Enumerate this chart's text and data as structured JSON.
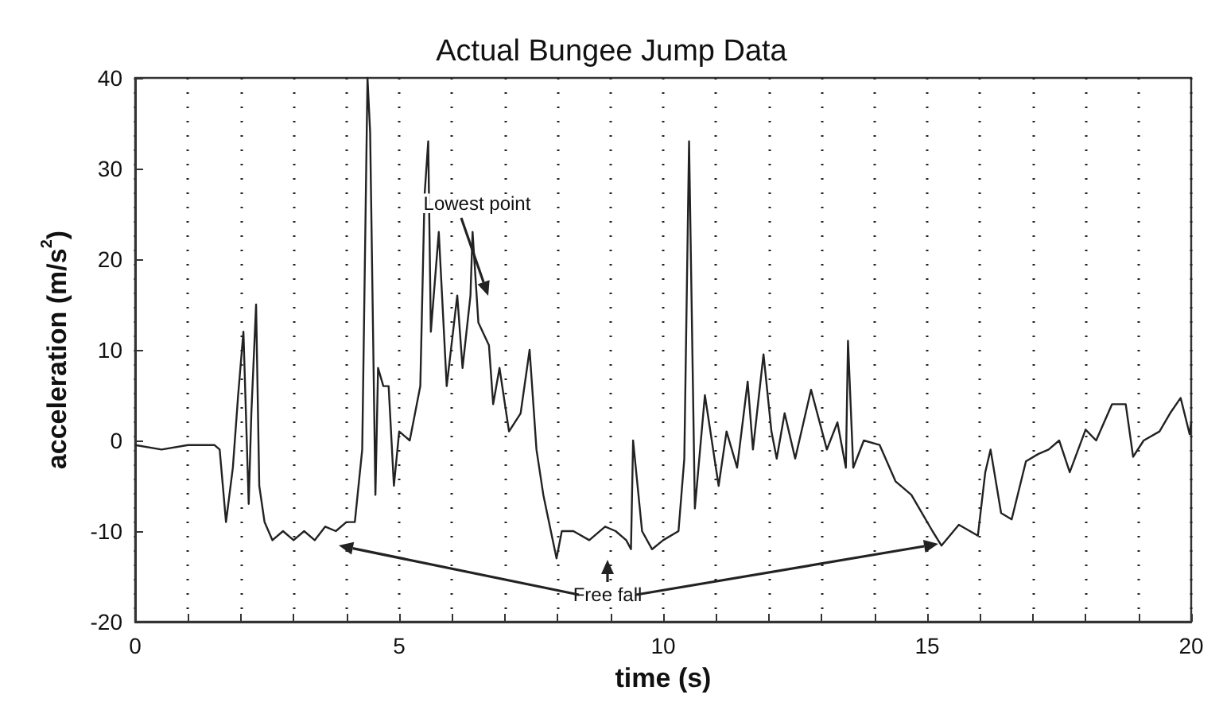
{
  "chart_data": {
    "type": "line",
    "title": "Actual Bungee Jump Data",
    "xlabel": "time (s)",
    "ylabel": "acceleration (m/s$^{2}$)",
    "series": [
      {
        "color": "#222222",
        "x": [
          0,
          0.5,
          1.0,
          1.5,
          1.6,
          1.72,
          1.85,
          1.95,
          2.05,
          2.15,
          2.2,
          2.29,
          2.35,
          2.45,
          2.6,
          2.8,
          3.0,
          3.2,
          3.4,
          3.6,
          3.8,
          4.0,
          4.16,
          4.3,
          4.4,
          4.45,
          4.55,
          4.6,
          4.7,
          4.8,
          4.9,
          5.0,
          5.2,
          5.4,
          5.48,
          5.55,
          5.6,
          5.75,
          5.9,
          6.1,
          6.2,
          6.35,
          6.39,
          6.5,
          6.7,
          6.78,
          6.9,
          7.08,
          7.3,
          7.47,
          7.6,
          7.73,
          7.98,
          8.08,
          8.3,
          8.6,
          8.9,
          9.1,
          9.3,
          9.39,
          9.43,
          9.6,
          9.79,
          10.0,
          10.29,
          10.4,
          10.49,
          10.6,
          10.79,
          11.05,
          11.2,
          11.4,
          11.6,
          11.7,
          11.9,
          12.05,
          12.15,
          12.3,
          12.5,
          12.8,
          13.1,
          13.3,
          13.46,
          13.5,
          13.6,
          13.8,
          14.1,
          14.4,
          14.7,
          14.9,
          15.1,
          15.27,
          15.6,
          15.96,
          16.1,
          16.2,
          16.4,
          16.6,
          16.87,
          17.1,
          17.3,
          17.5,
          17.7,
          18.0,
          18.2,
          18.5,
          18.76,
          18.9,
          19.1,
          19.4,
          19.6,
          19.8,
          19.97,
          20
        ],
        "values": [
          -0.5,
          -1,
          -0.5,
          -0.5,
          -1,
          -9,
          -3,
          5,
          12,
          -7,
          3,
          15,
          -5,
          -9,
          -11,
          -10,
          -11,
          -10,
          -11,
          -9.5,
          -10,
          -9,
          -9,
          -1,
          40,
          34,
          -6,
          8,
          6,
          6,
          -5,
          1,
          0,
          6,
          27,
          33,
          12,
          23,
          6,
          16,
          8,
          16,
          23,
          13,
          10.5,
          4,
          8,
          1,
          3,
          10,
          -1,
          -6,
          -13,
          -10,
          -10,
          -11,
          -9.5,
          -10,
          -11,
          -12,
          0,
          -10,
          -12,
          -11,
          -10,
          -2,
          33,
          -7.5,
          5,
          -5,
          1,
          -3,
          6.5,
          -1,
          9.5,
          1,
          -2,
          3,
          -2,
          5.6,
          -1,
          2,
          -3,
          11,
          -3,
          0,
          -0.5,
          -4.5,
          -6,
          -8,
          -10,
          -11.6,
          -9.3,
          -10.5,
          -3.5,
          -1,
          -8,
          -8.7,
          -2.3,
          -1.5,
          -1,
          0,
          -3.5,
          1.2,
          0,
          4,
          4,
          -1.8,
          0,
          1,
          3,
          4.7,
          0.7,
          2
        ]
      }
    ],
    "xlim": [
      0,
      20
    ],
    "ylim": [
      -20,
      40
    ],
    "xticks": [
      0,
      {
        "value": 1,
        "label": null
      },
      {
        "value": 2,
        "label": null
      },
      {
        "value": 3,
        "label": null
      },
      {
        "value": 4,
        "label": null
      },
      5,
      {
        "value": 6,
        "label": null
      },
      {
        "value": 7,
        "label": null
      },
      {
        "value": 8,
        "label": null
      },
      {
        "value": 9,
        "label": null
      },
      10,
      {
        "value": 11,
        "label": null
      },
      {
        "value": 12,
        "label": null
      },
      {
        "value": 13,
        "label": null
      },
      {
        "value": 14,
        "label": null
      },
      15,
      {
        "value": 16,
        "label": null
      },
      {
        "value": 17,
        "label": null
      },
      {
        "value": 18,
        "label": null
      },
      {
        "value": 19,
        "label": null
      },
      20
    ],
    "yticks": [
      -20,
      -10,
      0,
      10,
      20,
      30,
      40
    ],
    "grid": "x",
    "marker": "none",
    "line_style": "solid",
    "annotations": [
      "Lowest point",
      "Free fall"
    ]
  }
}
